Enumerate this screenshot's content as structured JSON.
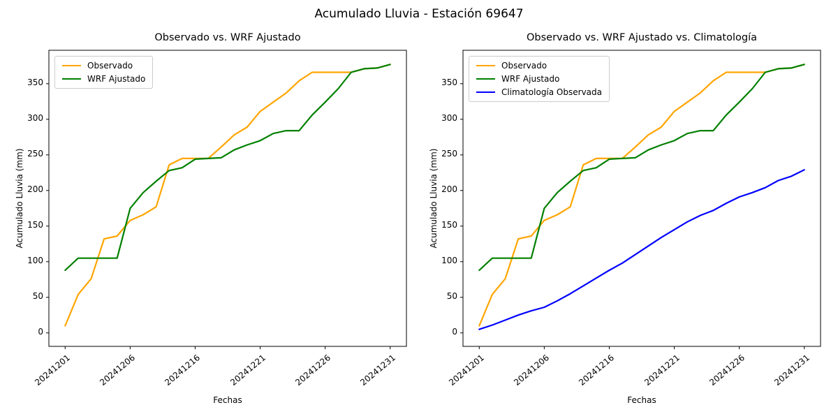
{
  "main_title": "Acumulado Lluvia - Estación 69647",
  "colors": {
    "observado": "#FFA500",
    "wrf_ajustado": "#008000",
    "climatologia": "#0000FF",
    "text": "#000000",
    "frame": "#000000"
  },
  "chart_data": [
    {
      "type": "line",
      "title": "Observado vs. WRF Ajustado",
      "xlabel": "Fechas",
      "ylabel": "Acumulado Lluvia (mm)",
      "grid": false,
      "legend_position": "upper left",
      "n_points": 26,
      "ylim": [
        -18.9,
        396.9
      ],
      "xlim": [
        -1.25,
        26.25
      ],
      "y_ticks": [
        "0",
        "50",
        "100",
        "150",
        "200",
        "250",
        "300",
        "350"
      ],
      "x_ticks": [
        {
          "pos": 0,
          "label": "20241201"
        },
        {
          "pos": 5,
          "label": "20241206"
        },
        {
          "pos": 10,
          "label": "20241216"
        },
        {
          "pos": 15,
          "label": "20241221"
        },
        {
          "pos": 20,
          "label": "20241226"
        },
        {
          "pos": 25,
          "label": "20241231"
        }
      ],
      "series": [
        {
          "name": "Observado",
          "color": "#FFA500",
          "values": [
            10,
            54,
            76,
            132,
            136,
            158,
            166,
            177,
            236,
            245,
            245,
            245,
            261,
            278,
            289,
            311,
            324,
            337,
            354,
            366,
            366,
            366,
            366,
            371,
            372,
            377
          ]
        },
        {
          "name": "WRF Ajustado",
          "color": "#008000",
          "values": [
            88,
            105,
            105,
            105,
            105,
            175,
            197,
            213,
            228,
            232,
            244,
            245,
            246,
            257,
            264,
            270,
            280,
            284,
            284,
            306,
            324,
            343,
            366,
            371,
            372,
            377
          ]
        }
      ]
    },
    {
      "type": "line",
      "title": "Observado vs. WRF Ajustado vs. Climatología",
      "xlabel": "Fechas",
      "ylabel": "Acumulado Lluvia (mm)",
      "grid": false,
      "legend_position": "upper left",
      "n_points": 26,
      "ylim": [
        -18.9,
        396.9
      ],
      "xlim": [
        -1.25,
        26.25
      ],
      "y_ticks": [
        "0",
        "50",
        "100",
        "150",
        "200",
        "250",
        "300",
        "350"
      ],
      "x_ticks": [
        {
          "pos": 0,
          "label": "20241201"
        },
        {
          "pos": 5,
          "label": "20241206"
        },
        {
          "pos": 10,
          "label": "20241216"
        },
        {
          "pos": 15,
          "label": "20241221"
        },
        {
          "pos": 20,
          "label": "20241226"
        },
        {
          "pos": 25,
          "label": "20241231"
        }
      ],
      "series": [
        {
          "name": "Observado",
          "color": "#FFA500",
          "values": [
            10,
            54,
            76,
            132,
            136,
            158,
            166,
            177,
            236,
            245,
            245,
            245,
            261,
            278,
            289,
            311,
            324,
            337,
            354,
            366,
            366,
            366,
            366,
            371,
            372,
            377
          ]
        },
        {
          "name": "WRF Ajustado",
          "color": "#008000",
          "values": [
            88,
            105,
            105,
            105,
            105,
            175,
            197,
            213,
            228,
            232,
            244,
            245,
            246,
            257,
            264,
            270,
            280,
            284,
            284,
            306,
            324,
            343,
            366,
            371,
            372,
            377
          ]
        },
        {
          "name": "Climatología Observada",
          "color": "#0000FF",
          "values": [
            5,
            11,
            18,
            25,
            31,
            36,
            45,
            55,
            66,
            77,
            88,
            98,
            110,
            122,
            134,
            145,
            156,
            165,
            172,
            182,
            191,
            197,
            204,
            214,
            220,
            229
          ]
        }
      ]
    }
  ]
}
